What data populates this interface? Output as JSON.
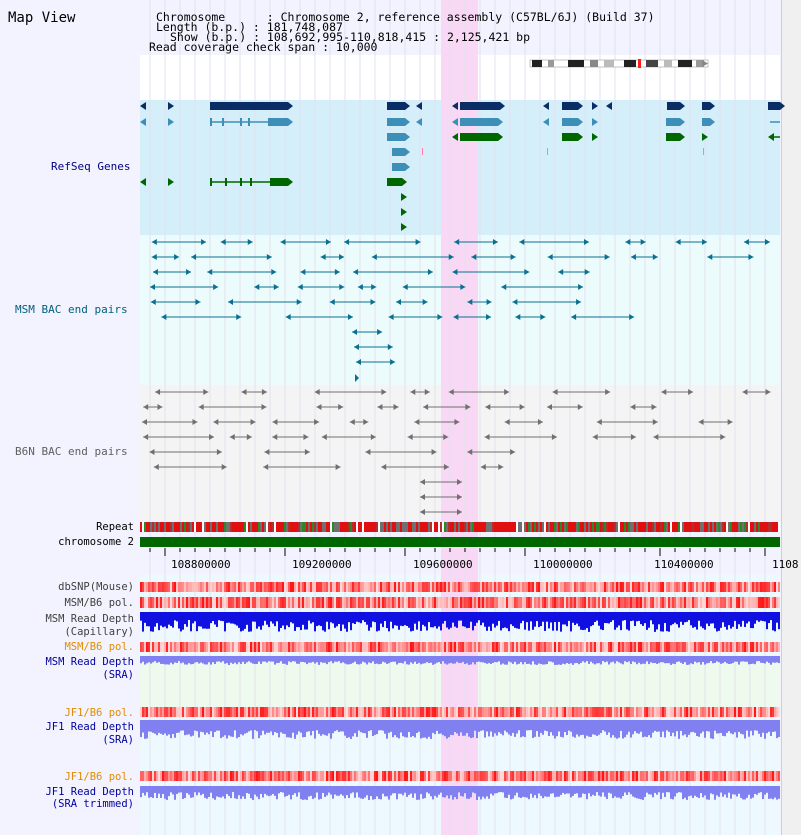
{
  "app": {
    "title": "Map View"
  },
  "header": {
    "chromosome": "Chromosome      : Chromosome 2, reference assembly (C57BL/6J) (Build 37)",
    "length": "Length (b.p.) : 181,748,087",
    "show": "Show (b.p.) : 108,692,995-110,818,415 : 2,125,421 bp",
    "coverage": "Read coverage check span : 10,000"
  },
  "tracks": {
    "refseq": "RefSeq Genes",
    "msm_bac": "MSM BAC end pairs",
    "b6n_bac": "B6N BAC end pairs",
    "repeat": "Repeat",
    "chromosome": "chromosome 2",
    "dbsnp": "dbSNP(Mouse)",
    "msm_pol_1": "MSM/B6 pol.",
    "msm_depth_cap_1": "MSM Read Depth",
    "msm_depth_cap_2": "(Capillary)",
    "msm_pol_2": "MSM/B6 pol.",
    "msm_depth_sra_1": "MSM Read Depth",
    "msm_depth_sra_2": "(SRA)",
    "jf1_pol_1": "JF1/B6 pol.",
    "jf1_depth_sra_1": "JF1 Read Depth",
    "jf1_depth_sra_2": "(SRA)",
    "jf1_pol_2": "JF1/B6 pol.",
    "jf1_depth_trim_1": "JF1 Read Depth",
    "jf1_depth_trim_2": "(SRA trimmed)"
  },
  "axis": {
    "ticks": [
      "108800000",
      "109200000",
      "109600000",
      "110000000",
      "110400000",
      "1108"
    ]
  },
  "colors": {
    "refseq_bg": "#d4eefa",
    "refseq_label": "#000080",
    "msm_bac_label": "#006080",
    "b6n_label": "#606060",
    "orange_label": "#e08c00",
    "blue_label": "#0000a0",
    "highlight": "#f8d8f4",
    "gene_dark": "#0a2d66",
    "gene_mid": "#3d8fb8",
    "gene_green": "#006600",
    "depth_dark": "#1010e0",
    "depth_light": "#8080f0"
  }
}
